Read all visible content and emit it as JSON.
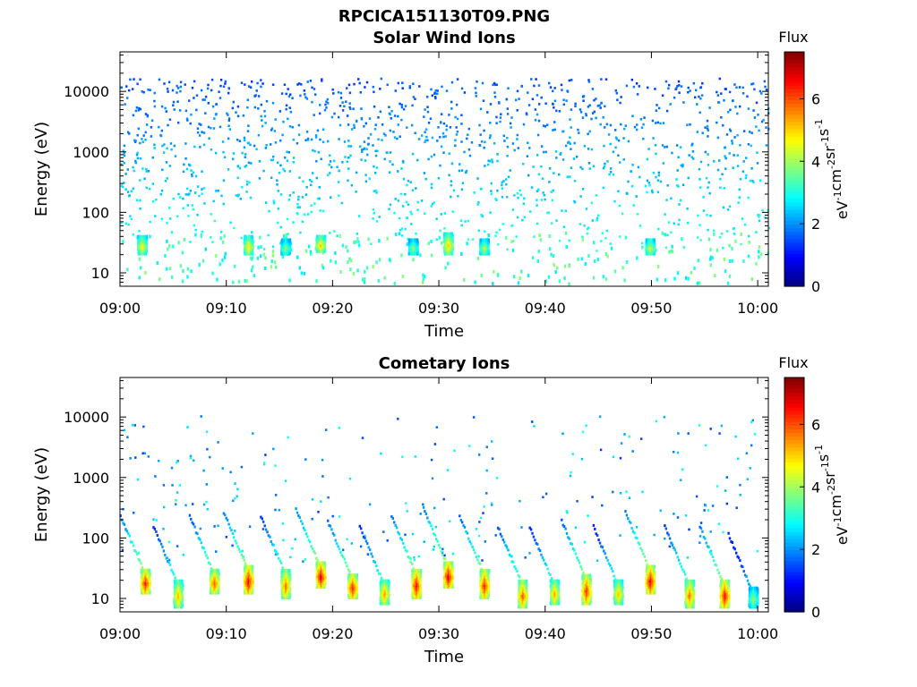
{
  "figure_title": "RPCICA151130T09.PNG",
  "colors": {
    "colormap": "jet",
    "axis": "#000000",
    "background": "#ffffff"
  },
  "chart_data": [
    {
      "type": "heatmap",
      "title": "Solar Wind Ions",
      "xlabel": "Time",
      "ylabel": "Energy (eV)",
      "x_ticks": [
        "09:00",
        "09:10",
        "09:20",
        "09:30",
        "09:40",
        "09:50",
        "10:00"
      ],
      "x_range_minutes": [
        0,
        61
      ],
      "y_scale": "log",
      "y_range": [
        6,
        45000
      ],
      "y_ticks": [
        10,
        100,
        1000,
        10000
      ],
      "y_tick_labels": [
        "10",
        "100",
        "1000",
        "10000"
      ],
      "colorbar": {
        "title": "Flux",
        "label_base": "eV",
        "label_parts": [
          {
            "text": "eV",
            "sup": "-1"
          },
          {
            "text": "cm",
            "sup": "-2"
          },
          {
            "text": "sr",
            "sup": "-1"
          },
          {
            "text": "s",
            "sup": "-1"
          }
        ],
        "range": [
          0,
          7.5
        ],
        "ticks": [
          0,
          2,
          4,
          6
        ],
        "tick_labels": [
          "0",
          "2",
          "4",
          "6"
        ]
      },
      "features": [
        {
          "t": 2.0,
          "e_low": 20,
          "e_high": 40,
          "flux": 4.8
        },
        {
          "t": 12.0,
          "e_low": 20,
          "e_high": 40,
          "flux": 4.9
        },
        {
          "t": 18.8,
          "e_low": 22,
          "e_high": 40,
          "flux": 5.2
        },
        {
          "t": 30.8,
          "e_low": 20,
          "e_high": 45,
          "flux": 5.1
        },
        {
          "t": 34.2,
          "e_low": 20,
          "e_high": 35,
          "flux": 4.3
        },
        {
          "t": 15.5,
          "e_low": 20,
          "e_high": 35,
          "flux": 4.0
        },
        {
          "t": 27.5,
          "e_low": 20,
          "e_high": 35,
          "flux": 4.0
        },
        {
          "t": 49.8,
          "e_low": 20,
          "e_high": 35,
          "flux": 4.5
        }
      ]
    },
    {
      "type": "heatmap",
      "title": "Cometary Ions",
      "xlabel": "Time",
      "ylabel": "Energy (eV)",
      "x_ticks": [
        "09:00",
        "09:10",
        "09:20",
        "09:30",
        "09:40",
        "09:50",
        "10:00"
      ],
      "x_range_minutes": [
        0,
        61
      ],
      "y_scale": "log",
      "y_range": [
        6,
        45000
      ],
      "y_ticks": [
        10,
        100,
        1000,
        10000
      ],
      "y_tick_labels": [
        "10",
        "100",
        "1000",
        "10000"
      ],
      "colorbar": {
        "title": "Flux",
        "label_parts": [
          {
            "text": "eV",
            "sup": "-1"
          },
          {
            "text": "cm",
            "sup": "-2"
          },
          {
            "text": "sr",
            "sup": "-1"
          },
          {
            "text": "s",
            "sup": "-1"
          }
        ],
        "range": [
          0,
          7.5
        ],
        "ticks": [
          0,
          2,
          4,
          6
        ],
        "tick_labels": [
          "0",
          "2",
          "4",
          "6"
        ]
      },
      "features": [
        {
          "t": 2.3,
          "e_low": 12,
          "e_high": 30,
          "flux": 6.5
        },
        {
          "t": 5.4,
          "e_low": 7,
          "e_high": 20,
          "flux": 5.3
        },
        {
          "t": 8.8,
          "e_low": 12,
          "e_high": 30,
          "flux": 6.0
        },
        {
          "t": 12.0,
          "e_low": 12,
          "e_high": 35,
          "flux": 6.7
        },
        {
          "t": 15.5,
          "e_low": 10,
          "e_high": 30,
          "flux": 5.8
        },
        {
          "t": 18.8,
          "e_low": 15,
          "e_high": 40,
          "flux": 6.8
        },
        {
          "t": 21.8,
          "e_low": 10,
          "e_high": 25,
          "flux": 6.5
        },
        {
          "t": 24.8,
          "e_low": 8,
          "e_high": 20,
          "flux": 5.5
        },
        {
          "t": 27.8,
          "e_low": 10,
          "e_high": 30,
          "flux": 6.6
        },
        {
          "t": 30.8,
          "e_low": 15,
          "e_high": 40,
          "flux": 6.8
        },
        {
          "t": 34.2,
          "e_low": 10,
          "e_high": 30,
          "flux": 6.4
        },
        {
          "t": 37.8,
          "e_low": 7,
          "e_high": 20,
          "flux": 6.0
        },
        {
          "t": 40.8,
          "e_low": 8,
          "e_high": 20,
          "flux": 5.4
        },
        {
          "t": 43.8,
          "e_low": 8,
          "e_high": 25,
          "flux": 6.3
        },
        {
          "t": 46.8,
          "e_low": 8,
          "e_high": 20,
          "flux": 5.2
        },
        {
          "t": 49.8,
          "e_low": 12,
          "e_high": 35,
          "flux": 6.7
        },
        {
          "t": 53.5,
          "e_low": 7,
          "e_high": 20,
          "flux": 5.8
        },
        {
          "t": 56.8,
          "e_low": 7,
          "e_high": 20,
          "flux": 6.6
        },
        {
          "t": 59.5,
          "e_low": 7,
          "e_high": 15,
          "flux": 4.0
        }
      ]
    }
  ]
}
